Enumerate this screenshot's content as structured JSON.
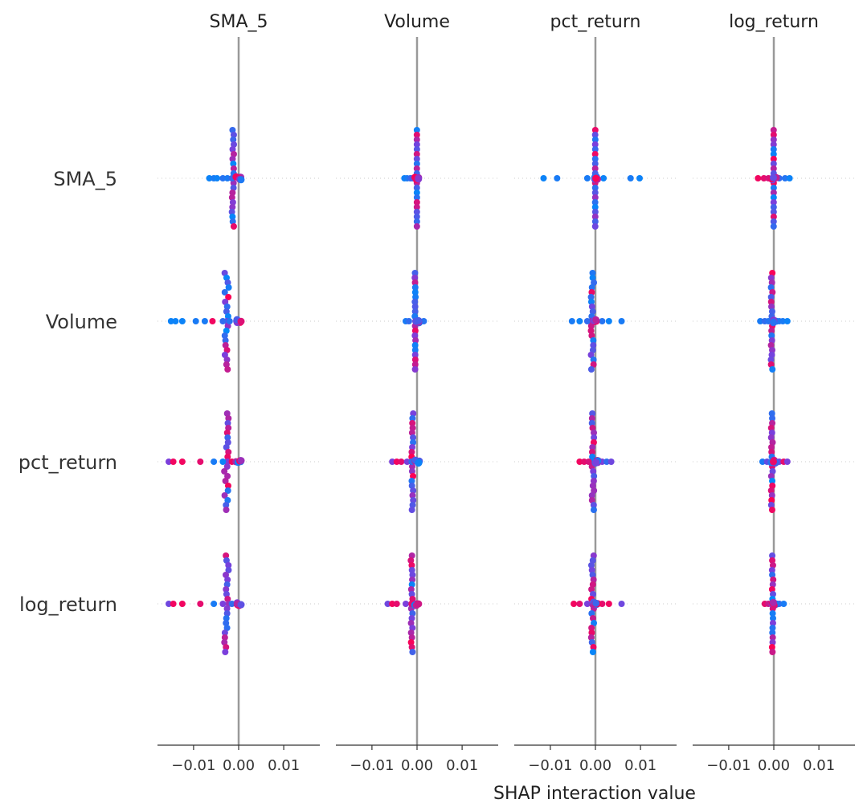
{
  "chart_data": {
    "type": "scatter",
    "kind": "shap-interaction-summary",
    "features": [
      "SMA_5",
      "Volume",
      "pct_return",
      "log_return"
    ],
    "xlabel": "SHAP interaction value",
    "xlim": [
      -0.018,
      0.018
    ],
    "xticks": [
      -0.01,
      0.0,
      0.01
    ],
    "xtick_labels": [
      "−0.01",
      "0.00",
      "0.01"
    ],
    "grid": "dotted horizontal rows",
    "zero_line_color": "#999999",
    "colormap": {
      "low": "#008afb",
      "mid": "#7b3fdc",
      "high": "#ff0052"
    },
    "cells": [
      [
        {
          "min": -0.0075,
          "max": 0.0,
          "spread": [
            -0.0065,
            -0.0055,
            -0.0048,
            -0.0035,
            -0.0025,
            -0.0015
          ],
          "spread_values": [
            0.05,
            0.1,
            0.05,
            0.15,
            0.1,
            0.2
          ]
        },
        {
          "min": -0.0002,
          "max": 0.0001,
          "spread": [
            -0.0028,
            -0.0022,
            -0.0015,
            -0.001
          ],
          "spread_values": [
            0.05,
            0.1,
            0.2,
            0.3
          ]
        },
        {
          "min": -0.0003,
          "max": 0.0003,
          "spread": [
            -0.0115,
            -0.0085,
            -0.0018,
            0.0018,
            0.0078,
            0.0098
          ],
          "spread_values": [
            0.05,
            0.1,
            0.1,
            0.05,
            0.1,
            0.05
          ]
        },
        {
          "min": -0.0002,
          "max": 0.0002,
          "spread": [
            -0.0035,
            -0.0022,
            -0.0012,
            0.0012,
            0.0025,
            0.0035
          ],
          "spread_values": [
            0.95,
            0.9,
            0.85,
            0.2,
            0.15,
            0.05
          ]
        }
      ],
      [
        {
          "min": -0.0155,
          "max": 0.0,
          "spread": [
            -0.015,
            -0.014,
            -0.0125,
            -0.0095,
            -0.0075,
            -0.0058,
            -0.0035,
            -0.002
          ],
          "spread_values": [
            0.05,
            0.05,
            0.05,
            0.1,
            0.1,
            0.95,
            0.2,
            0.15
          ]
        },
        {
          "min": -0.0025,
          "max": 0.0002,
          "spread": [
            -0.0025,
            -0.0018,
            0.0015
          ],
          "spread_values": [
            0.1,
            0.2,
            0.15
          ]
        },
        {
          "min": -0.005,
          "max": 0.006,
          "spread": [
            -0.0052,
            -0.0035,
            -0.0018,
            0.0015,
            0.003,
            0.0058
          ],
          "spread_values": [
            0.1,
            0.05,
            0.2,
            0.15,
            0.05,
            0.1
          ]
        },
        {
          "min": -0.0032,
          "max": 0.003,
          "spread": [
            -0.003,
            -0.002,
            -0.0012,
            0.0012,
            0.002,
            0.003
          ],
          "spread_values": [
            0.1,
            0.2,
            0.15,
            0.15,
            0.1,
            0.05
          ]
        }
      ],
      [
        {
          "min": -0.016,
          "max": 0.0,
          "spread": [
            -0.0155,
            -0.0145,
            -0.0125,
            -0.0085,
            -0.0055,
            -0.0035,
            -0.0015
          ],
          "spread_values": [
            0.5,
            0.95,
            0.95,
            0.9,
            0.1,
            0.05,
            0.95
          ]
        },
        {
          "min": -0.006,
          "max": 0.0,
          "spread": [
            -0.0055,
            -0.0045,
            -0.0035,
            -0.0022,
            -0.0012
          ],
          "spread_values": [
            0.5,
            0.95,
            0.9,
            0.5,
            0.2
          ]
        },
        {
          "min": -0.004,
          "max": 0.004,
          "spread": [
            -0.0035,
            -0.0025,
            -0.0015,
            0.0015,
            0.0025,
            0.0035
          ],
          "spread_values": [
            0.95,
            0.9,
            0.85,
            0.5,
            0.2,
            0.45
          ]
        },
        {
          "min": -0.003,
          "max": 0.003,
          "spread": [
            -0.0025,
            -0.0015,
            0.0012,
            0.0022,
            0.003
          ],
          "spread_values": [
            0.1,
            0.4,
            0.5,
            0.9,
            0.5
          ]
        }
      ],
      [
        {
          "min": -0.016,
          "max": 0.001,
          "spread": [
            -0.0155,
            -0.0145,
            -0.0125,
            -0.0085,
            -0.0055,
            -0.0035,
            -0.0015
          ],
          "spread_values": [
            0.45,
            0.95,
            0.95,
            0.9,
            0.1,
            0.5,
            0.2
          ]
        },
        {
          "min": -0.007,
          "max": 0.0,
          "spread": [
            -0.0065,
            -0.0055,
            -0.0045,
            -0.0025,
            -0.0012
          ],
          "spread_values": [
            0.45,
            0.95,
            0.9,
            0.5,
            0.9
          ]
        },
        {
          "min": -0.005,
          "max": 0.006,
          "spread": [
            -0.0048,
            -0.0035,
            -0.0018,
            0.0015,
            0.003,
            0.0058
          ],
          "spread_values": [
            0.95,
            0.9,
            0.5,
            0.9,
            0.95,
            0.45
          ]
        },
        {
          "min": -0.002,
          "max": 0.0025,
          "spread": [
            -0.002,
            -0.0012,
            0.0012,
            0.0022
          ],
          "spread_values": [
            0.9,
            0.8,
            0.2,
            0.1
          ]
        }
      ]
    ]
  }
}
